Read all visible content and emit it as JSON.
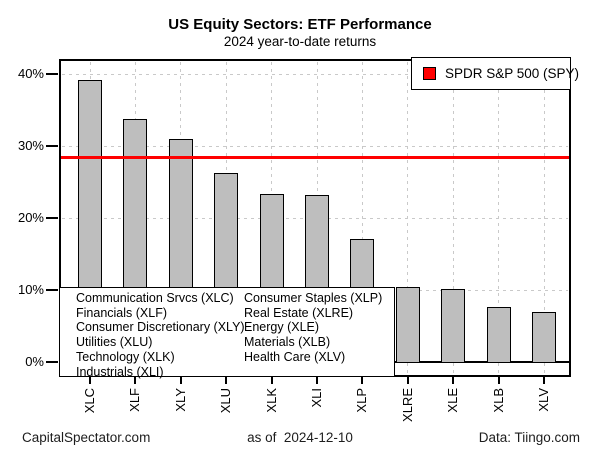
{
  "title": "US Equity Sectors: ETF Performance",
  "subtitle": "2024 year-to-date returns",
  "spy_legend": {
    "label": "SPDR S&P 500 (SPY)",
    "swatch_color": "#ff0000"
  },
  "sector_key": {
    "col1": [
      "Communication Srvcs (XLC)",
      "Financials (XLF)",
      "Consumer Discretionary (XLY)",
      "Utilities (XLU)",
      "Technology (XLK)",
      "Industrials (XLI)"
    ],
    "col2": [
      "Consumer Staples (XLP)",
      "Real Estate (XLRE)",
      "Energy (XLE)",
      "Materials (XLB)",
      "Health Care (XLV)"
    ]
  },
  "footer": {
    "left": "CapitalSpectator.com",
    "center": "as of  2024-12-10",
    "right": "Data: Tiingo.com"
  },
  "chart_data": {
    "type": "bar",
    "title": "US Equity Sectors: ETF Performance",
    "subtitle": "2024 year-to-date returns",
    "categories": [
      "XLC",
      "XLF",
      "XLY",
      "XLU",
      "XLK",
      "XLI",
      "XLP",
      "XLRE",
      "XLE",
      "XLB",
      "XLV"
    ],
    "values": [
      39.2,
      33.8,
      31.0,
      26.3,
      23.4,
      23.2,
      17.1,
      10.4,
      10.2,
      7.7,
      6.9
    ],
    "yticks": [
      0,
      10,
      20,
      30,
      40
    ],
    "ytick_labels": [
      "0%",
      "10%",
      "20%",
      "30%",
      "40%"
    ],
    "ylim": [
      0,
      42
    ],
    "xlabel": "",
    "ylabel": "",
    "grid": "dashed",
    "bar_color": "#bebebe",
    "bar_border_color": "#000000",
    "reference_line": {
      "name": "SPDR S&P 500 (SPY)",
      "value": 28.4,
      "color": "#ff0000"
    },
    "legend_position": "top-right"
  }
}
